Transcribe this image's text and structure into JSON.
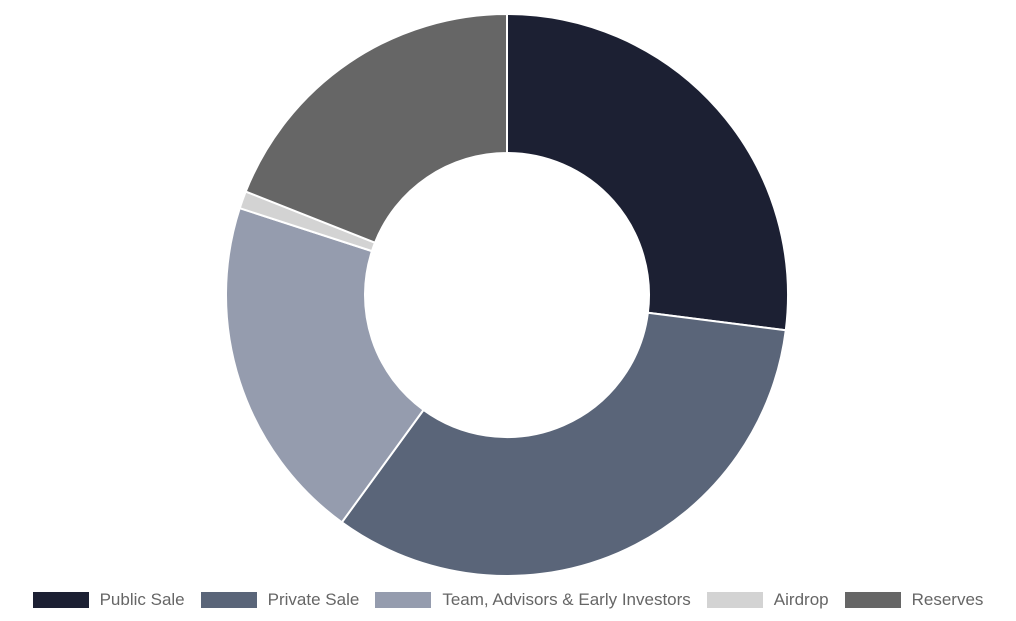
{
  "chart_data": {
    "type": "doughnut",
    "categories": [
      "Public Sale",
      "Private Sale",
      "Team, Advisors & Early Investors",
      "Airdrop",
      "Reserves"
    ],
    "values": [
      27,
      33,
      20,
      1,
      19
    ],
    "colors": [
      "#1c2033",
      "#5a6579",
      "#959cae",
      "#d3d3d3",
      "#666666"
    ],
    "legend": "bottom"
  }
}
